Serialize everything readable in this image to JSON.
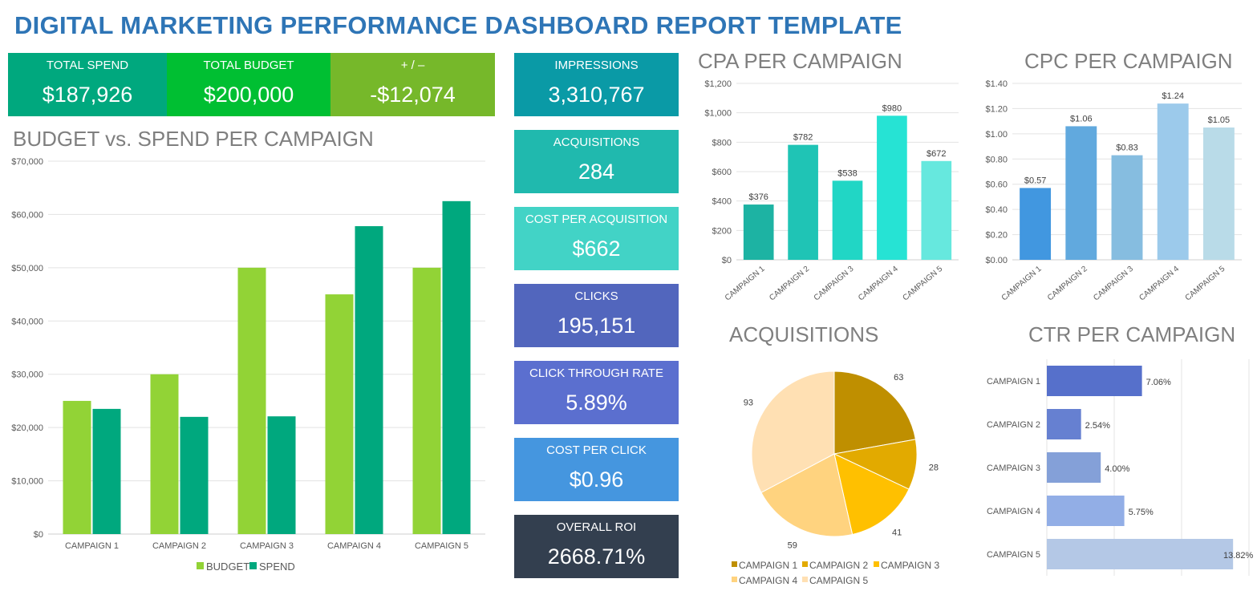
{
  "title": "DIGITAL MARKETING PERFORMANCE DASHBOARD REPORT TEMPLATE",
  "kpis_top": [
    {
      "label": "TOTAL SPEND",
      "value": "$187,926",
      "color": "#00a87e"
    },
    {
      "label": "TOTAL BUDGET",
      "value": "$200,000",
      "color": "#00bf32"
    },
    {
      "label": "+ / –",
      "value": "-$12,074",
      "color": "#76b82a"
    }
  ],
  "kpis_side": [
    {
      "label": "IMPRESSIONS",
      "value": "3,310,767",
      "color": "#0a9aa6"
    },
    {
      "label": "ACQUISITIONS",
      "value": "284",
      "color": "#20b9ae"
    },
    {
      "label": "COST PER ACQUISITION",
      "value": "$662",
      "color": "#42d3c6"
    },
    {
      "label": "CLICKS",
      "value": "195,151",
      "color": "#5266bd"
    },
    {
      "label": "CLICK THROUGH RATE",
      "value": "5.89%",
      "color": "#5b6fcf"
    },
    {
      "label": "COST PER CLICK",
      "value": "$0.96",
      "color": "#4596df"
    },
    {
      "label": "OVERALL ROI",
      "value": "2668.71%",
      "color": "#333f4f"
    }
  ],
  "chart_data": [
    {
      "id": "budget",
      "type": "bar",
      "title": "BUDGET vs. SPEND PER CAMPAIGN",
      "categories": [
        "CAMPAIGN 1",
        "CAMPAIGN 2",
        "CAMPAIGN 3",
        "CAMPAIGN 4",
        "CAMPAIGN 5"
      ],
      "series": [
        {
          "name": "BUDGET",
          "values": [
            25000,
            30000,
            50000,
            45000,
            50000
          ],
          "color": "#92d336"
        },
        {
          "name": "SPEND",
          "values": [
            23500,
            22000,
            22100,
            57800,
            62500
          ],
          "color": "#00a87e"
        }
      ],
      "ylim": [
        0,
        70000
      ],
      "yticks": [
        "$0",
        "$10,000",
        "$20,000",
        "$30,000",
        "$40,000",
        "$50,000",
        "$60,000",
        "$70,000"
      ],
      "grid": true,
      "legend": "bottom"
    },
    {
      "id": "cpa",
      "type": "bar",
      "title": "CPA PER CAMPAIGN",
      "categories": [
        "CAMPAIGN 1",
        "CAMPAIGN 2",
        "CAMPAIGN 3",
        "CAMPAIGN 4",
        "CAMPAIGN 5"
      ],
      "values": [
        376,
        782,
        538,
        980,
        672
      ],
      "labels": [
        "$376",
        "$782",
        "$538",
        "$980",
        "$672"
      ],
      "colors": [
        "#1db3a3",
        "#1fc4b5",
        "#21d6c5",
        "#26e3d4",
        "#66e8de"
      ],
      "ylim": [
        0,
        1200
      ],
      "yticks": [
        "$0",
        "$200",
        "$400",
        "$600",
        "$800",
        "$1,000",
        "$1,200"
      ],
      "grid": true
    },
    {
      "id": "cpc",
      "type": "bar",
      "title": "CPC PER CAMPAIGN",
      "categories": [
        "CAMPAIGN 1",
        "CAMPAIGN 2",
        "CAMPAIGN 3",
        "CAMPAIGN 4",
        "CAMPAIGN 5"
      ],
      "values": [
        0.57,
        1.06,
        0.83,
        1.24,
        1.05
      ],
      "labels": [
        "$0.57",
        "$1.06",
        "$0.83",
        "$1.24",
        "$1.05"
      ],
      "colors": [
        "#4197e0",
        "#61a9de",
        "#86bde0",
        "#9ccaeb",
        "#b9dbe8"
      ],
      "ylim": [
        0,
        1.4
      ],
      "yticks": [
        "$0.00",
        "$0.20",
        "$0.40",
        "$0.60",
        "$0.80",
        "$1.00",
        "$1.20",
        "$1.40"
      ],
      "grid": true
    },
    {
      "id": "acq",
      "type": "pie",
      "title": "ACQUISITIONS",
      "categories": [
        "CAMPAIGN 1",
        "CAMPAIGN 2",
        "CAMPAIGN 3",
        "CAMPAIGN 4",
        "CAMPAIGN 5"
      ],
      "values": [
        63,
        28,
        41,
        59,
        93
      ],
      "colors": [
        "#bf8f00",
        "#e2aa00",
        "#ffc000",
        "#ffd37f",
        "#ffe0b3"
      ],
      "legend": "bottom"
    },
    {
      "id": "ctr",
      "type": "bar",
      "orientation": "horizontal",
      "title": "CTR PER CAMPAIGN",
      "categories": [
        "CAMPAIGN 1",
        "CAMPAIGN 2",
        "CAMPAIGN 3",
        "CAMPAIGN 4",
        "CAMPAIGN 5"
      ],
      "values": [
        7.06,
        2.54,
        4.0,
        5.75,
        13.82
      ],
      "labels": [
        "7.06%",
        "2.54%",
        "4.00%",
        "5.75%",
        "13.82%"
      ],
      "colors": [
        "#5670cb",
        "#6680d1",
        "#84a0d8",
        "#92aee6",
        "#b4c8e6"
      ],
      "xlim": [
        0,
        15
      ],
      "grid": true
    }
  ]
}
